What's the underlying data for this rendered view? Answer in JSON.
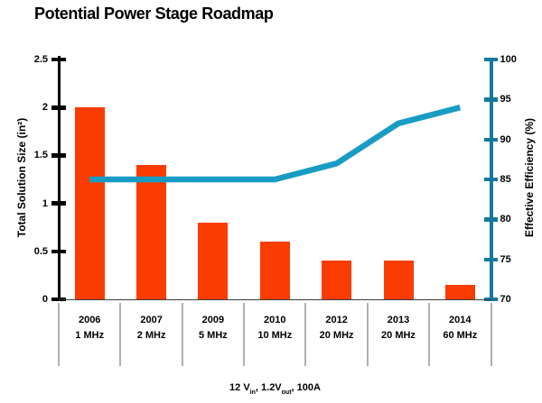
{
  "title": "Potential Power Stage Roadmap",
  "colors": {
    "bar": "#fa3c00",
    "line": "#189cc4",
    "right_axis": "#15789e",
    "left_axis": "#000000",
    "baseline": "#3c3c3c",
    "divider": "#b0b0b0",
    "text": "#000000"
  },
  "left_axis": {
    "label": "Total Solution Size (in²)",
    "min": 0,
    "max": 2.5,
    "ticks": [
      {
        "v": 0,
        "label": "0"
      },
      {
        "v": 0.5,
        "label": "0.5"
      },
      {
        "v": 1,
        "label": "1"
      },
      {
        "v": 1.5,
        "label": "1.5"
      },
      {
        "v": 2,
        "label": "2"
      },
      {
        "v": 2.5,
        "label": "2.5"
      }
    ]
  },
  "right_axis": {
    "label": "Effective Efficiency (%)",
    "min": 70,
    "max": 100,
    "ticks": [
      {
        "v": 70,
        "label": "70"
      },
      {
        "v": 75,
        "label": "75"
      },
      {
        "v": 80,
        "label": "80"
      },
      {
        "v": 85,
        "label": "85"
      },
      {
        "v": 90,
        "label": "90"
      },
      {
        "v": 95,
        "label": "95"
      },
      {
        "v": 100,
        "label": "100"
      }
    ]
  },
  "x_axis": {
    "years": [
      "2006",
      "2007",
      "2009",
      "2010",
      "2012",
      "2013",
      "2014"
    ],
    "freqs": [
      "1 MHz",
      "2 MHz",
      "5 MHz",
      "10 MHz",
      "20 MHz",
      "20 MHz",
      "60 MHz"
    ]
  },
  "annotation": {
    "p1": "12 V",
    "s1": "in",
    "p2": ", 1.2V",
    "s2": "out",
    "p3": ", 100A"
  },
  "chart_data": {
    "type": "bar",
    "title": "Potential Power Stage Roadmap",
    "categories": [
      "2006 1 MHz",
      "2007 2 MHz",
      "2009 5 MHz",
      "2010 10 MHz",
      "2012 20 MHz",
      "2013 20 MHz",
      "2014 60 MHz"
    ],
    "series": [
      {
        "name": "Total Solution Size (in²)",
        "type": "bar",
        "axis": "left",
        "color": "#fa3c00",
        "values": [
          2.0,
          1.4,
          0.8,
          0.6,
          0.4,
          0.4,
          0.15
        ]
      },
      {
        "name": "Effective Efficiency (%)",
        "type": "line",
        "axis": "right",
        "color": "#189cc4",
        "values": [
          85,
          85,
          85,
          85,
          87,
          92,
          94
        ]
      }
    ],
    "ylabel_left": "Total Solution Size (in²)",
    "ylabel_right": "Effective Efficiency (%)",
    "ylim_left": [
      0,
      2.5
    ],
    "ylim_right": [
      70,
      100
    ],
    "grid": false,
    "legend": false,
    "footnote": "12 Vin, 1.2Vout, 100A"
  }
}
